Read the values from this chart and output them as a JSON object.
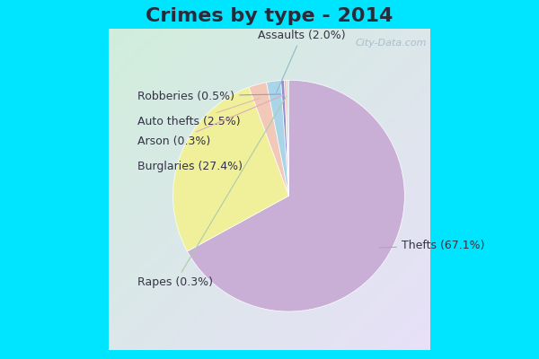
{
  "title": "Crimes by type - 2014",
  "slices": [
    {
      "label": "Thefts",
      "pct": 67.1,
      "color": "#c9afd5"
    },
    {
      "label": "Burglaries",
      "pct": 27.4,
      "color": "#f0f09a"
    },
    {
      "label": "Auto thefts",
      "pct": 2.5,
      "color": "#f2c8b8"
    },
    {
      "label": "Assaults",
      "pct": 2.0,
      "color": "#aad4e8"
    },
    {
      "label": "Robberies",
      "pct": 0.5,
      "color": "#9090cc"
    },
    {
      "label": "Arson",
      "pct": 0.3,
      "color": "#f0b8b8"
    },
    {
      "label": "Rapes",
      "pct": 0.3,
      "color": "#c8e0d0"
    }
  ],
  "bg_border": "#00e5ff",
  "bg_inner_top_left": "#d0eedc",
  "bg_inner_bottom_right": "#e8e0f0",
  "title_color": "#2a2a3a",
  "title_fontsize": 16,
  "label_fontsize": 9,
  "watermark": "City-Data.com",
  "annotations": [
    {
      "label": "Thefts (67.1%)",
      "ha": "left",
      "idx": 0
    },
    {
      "label": "Burglaries (27.4%)",
      "ha": "right",
      "idx": 1
    },
    {
      "label": "Auto thefts (2.5%)",
      "ha": "right",
      "idx": 2
    },
    {
      "label": "Assaults (2.0%)",
      "ha": "center",
      "idx": 3
    },
    {
      "label": "Robberies (0.5%)",
      "ha": "right",
      "idx": 4
    },
    {
      "label": "Arson (0.3%)",
      "ha": "right",
      "idx": 5
    },
    {
      "label": "Rapes (0.3%)",
      "ha": "right",
      "idx": 6
    }
  ]
}
